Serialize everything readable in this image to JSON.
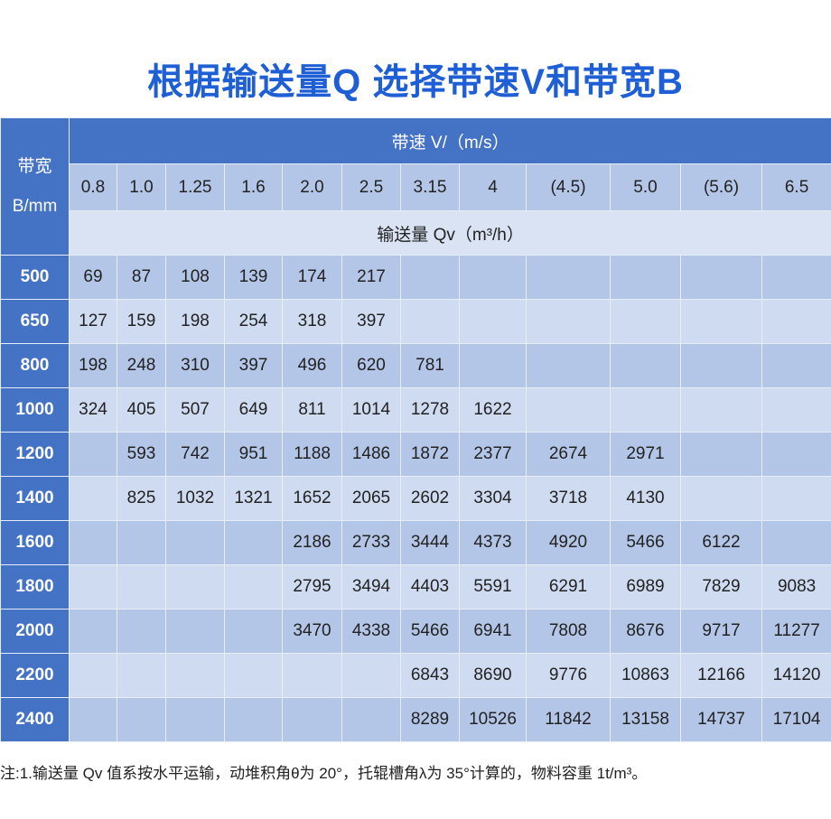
{
  "title": "根据输送量Q 选择带速V和带宽B",
  "table": {
    "corner_label_line1": "带宽",
    "corner_label_line2": "B/mm",
    "speed_header": "带速 V/（m/s）",
    "speeds": [
      "0.8",
      "1.0",
      "1.25",
      "1.6",
      "2.0",
      "2.5",
      "3.15",
      "4",
      "(4.5)",
      "5.0",
      "(5.6)",
      "6.5"
    ],
    "flow_header": "输送量 Qv（m³/h）",
    "rows": [
      {
        "width": "500",
        "values": [
          "69",
          "87",
          "108",
          "139",
          "174",
          "217",
          "",
          "",
          "",
          "",
          "",
          ""
        ]
      },
      {
        "width": "650",
        "values": [
          "127",
          "159",
          "198",
          "254",
          "318",
          "397",
          "",
          "",
          "",
          "",
          "",
          ""
        ]
      },
      {
        "width": "800",
        "values": [
          "198",
          "248",
          "310",
          "397",
          "496",
          "620",
          "781",
          "",
          "",
          "",
          "",
          ""
        ]
      },
      {
        "width": "1000",
        "values": [
          "324",
          "405",
          "507",
          "649",
          "811",
          "1014",
          "1278",
          "1622",
          "",
          "",
          "",
          ""
        ]
      },
      {
        "width": "1200",
        "values": [
          "",
          "593",
          "742",
          "951",
          "1188",
          "1486",
          "1872",
          "2377",
          "2674",
          "2971",
          "",
          ""
        ]
      },
      {
        "width": "1400",
        "values": [
          "",
          "825",
          "1032",
          "1321",
          "1652",
          "2065",
          "2602",
          "3304",
          "3718",
          "4130",
          "",
          ""
        ]
      },
      {
        "width": "1600",
        "values": [
          "",
          "",
          "",
          "",
          "2186",
          "2733",
          "3444",
          "4373",
          "4920",
          "5466",
          "6122",
          ""
        ]
      },
      {
        "width": "1800",
        "values": [
          "",
          "",
          "",
          "",
          "2795",
          "3494",
          "4403",
          "5591",
          "6291",
          "6989",
          "7829",
          "9083"
        ]
      },
      {
        "width": "2000",
        "values": [
          "",
          "",
          "",
          "",
          "3470",
          "4338",
          "5466",
          "6941",
          "7808",
          "8676",
          "9717",
          "11277"
        ]
      },
      {
        "width": "2200",
        "values": [
          "",
          "",
          "",
          "",
          "",
          "",
          "6843",
          "8690",
          "9776",
          "10863",
          "12166",
          "14120"
        ]
      },
      {
        "width": "2400",
        "values": [
          "",
          "",
          "",
          "",
          "",
          "",
          "8289",
          "10526",
          "11842",
          "13158",
          "14737",
          "17104"
        ]
      }
    ]
  },
  "note": "注:1.输送量 Qv 值系按水平运输，动堆积角θ为 20°，托辊槽角λ为 35°计算的，物料容重 1t/m³。",
  "colors": {
    "title": "#1f5fd6",
    "header": "#4472c4",
    "speed_row": "#b4c6e7",
    "flow_row": "#dae3f3"
  }
}
